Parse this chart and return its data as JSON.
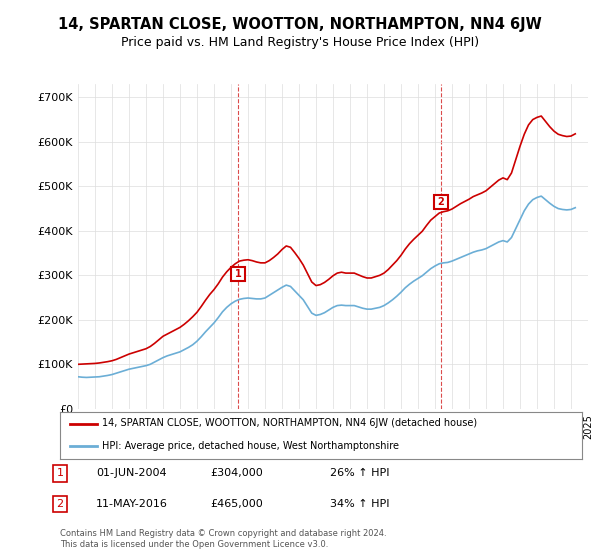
{
  "title": "14, SPARTAN CLOSE, WOOTTON, NORTHAMPTON, NN4 6JW",
  "subtitle": "Price paid vs. HM Land Registry's House Price Index (HPI)",
  "ylabel": "",
  "ylim": [
    0,
    730000
  ],
  "yticks": [
    0,
    100000,
    200000,
    300000,
    400000,
    500000,
    600000,
    700000
  ],
  "ytick_labels": [
    "£0",
    "£100K",
    "£200K",
    "£300K",
    "£400K",
    "£500K",
    "£600K",
    "£700K"
  ],
  "hpi_color": "#6baed6",
  "price_color": "#cc0000",
  "marker1_date": 2004.42,
  "marker1_price": 304000,
  "marker1_label": "1",
  "marker2_date": 2016.36,
  "marker2_price": 465000,
  "marker2_label": "2",
  "legend_line1": "14, SPARTAN CLOSE, WOOTTON, NORTHAMPTON, NN4 6JW (detached house)",
  "legend_line2": "HPI: Average price, detached house, West Northamptonshire",
  "sale1_date": "01-JUN-2004",
  "sale1_price": "£304,000",
  "sale1_hpi": "26% ↑ HPI",
  "sale2_date": "11-MAY-2016",
  "sale2_price": "£465,000",
  "sale2_hpi": "34% ↑ HPI",
  "footer": "Contains HM Land Registry data © Crown copyright and database right 2024.\nThis data is licensed under the Open Government Licence v3.0.",
  "background_color": "#ffffff",
  "grid_color": "#dddddd",
  "title_fontsize": 10.5,
  "subtitle_fontsize": 9,
  "hpi_data": {
    "years": [
      1995.0,
      1995.25,
      1995.5,
      1995.75,
      1996.0,
      1996.25,
      1996.5,
      1996.75,
      1997.0,
      1997.25,
      1997.5,
      1997.75,
      1998.0,
      1998.25,
      1998.5,
      1998.75,
      1999.0,
      1999.25,
      1999.5,
      1999.75,
      2000.0,
      2000.25,
      2000.5,
      2000.75,
      2001.0,
      2001.25,
      2001.5,
      2001.75,
      2002.0,
      2002.25,
      2002.5,
      2002.75,
      2003.0,
      2003.25,
      2003.5,
      2003.75,
      2004.0,
      2004.25,
      2004.5,
      2004.75,
      2005.0,
      2005.25,
      2005.5,
      2005.75,
      2006.0,
      2006.25,
      2006.5,
      2006.75,
      2007.0,
      2007.25,
      2007.5,
      2007.75,
      2008.0,
      2008.25,
      2008.5,
      2008.75,
      2009.0,
      2009.25,
      2009.5,
      2009.75,
      2010.0,
      2010.25,
      2010.5,
      2010.75,
      2011.0,
      2011.25,
      2011.5,
      2011.75,
      2012.0,
      2012.25,
      2012.5,
      2012.75,
      2013.0,
      2013.25,
      2013.5,
      2013.75,
      2014.0,
      2014.25,
      2014.5,
      2014.75,
      2015.0,
      2015.25,
      2015.5,
      2015.75,
      2016.0,
      2016.25,
      2016.5,
      2016.75,
      2017.0,
      2017.25,
      2017.5,
      2017.75,
      2018.0,
      2018.25,
      2018.5,
      2018.75,
      2019.0,
      2019.25,
      2019.5,
      2019.75,
      2020.0,
      2020.25,
      2020.5,
      2020.75,
      2021.0,
      2021.25,
      2021.5,
      2021.75,
      2022.0,
      2022.25,
      2022.5,
      2022.75,
      2023.0,
      2023.25,
      2023.5,
      2023.75,
      2024.0,
      2024.25
    ],
    "values": [
      72000,
      71000,
      70500,
      71000,
      71500,
      72000,
      73500,
      75000,
      77000,
      80000,
      83000,
      86000,
      89000,
      91000,
      93000,
      95000,
      97000,
      100000,
      105000,
      110000,
      115000,
      119000,
      122000,
      125000,
      128000,
      133000,
      138000,
      144000,
      152000,
      162000,
      173000,
      183000,
      193000,
      205000,
      218000,
      228000,
      236000,
      242000,
      246000,
      248000,
      249000,
      248000,
      247000,
      247000,
      249000,
      255000,
      261000,
      267000,
      273000,
      278000,
      275000,
      265000,
      255000,
      245000,
      230000,
      215000,
      210000,
      212000,
      216000,
      222000,
      228000,
      232000,
      233000,
      232000,
      232000,
      232000,
      229000,
      226000,
      224000,
      224000,
      226000,
      228000,
      232000,
      238000,
      245000,
      253000,
      262000,
      272000,
      280000,
      287000,
      293000,
      299000,
      307000,
      315000,
      321000,
      326000,
      328000,
      329000,
      332000,
      336000,
      340000,
      344000,
      348000,
      352000,
      355000,
      357000,
      360000,
      365000,
      370000,
      375000,
      378000,
      375000,
      385000,
      405000,
      425000,
      445000,
      460000,
      470000,
      475000,
      478000,
      470000,
      462000,
      455000,
      450000,
      448000,
      447000,
      448000,
      452000
    ]
  },
  "price_data": {
    "years": [
      1995.0,
      1995.25,
      1995.5,
      1995.75,
      1996.0,
      1996.25,
      1996.5,
      1996.75,
      1997.0,
      1997.25,
      1997.5,
      1997.75,
      1998.0,
      1998.25,
      1998.5,
      1998.75,
      1999.0,
      1999.25,
      1999.5,
      1999.75,
      2000.0,
      2000.25,
      2000.5,
      2000.75,
      2001.0,
      2001.25,
      2001.5,
      2001.75,
      2002.0,
      2002.25,
      2002.5,
      2002.75,
      2003.0,
      2003.25,
      2003.5,
      2003.75,
      2004.0,
      2004.25,
      2004.5,
      2004.75,
      2005.0,
      2005.25,
      2005.5,
      2005.75,
      2006.0,
      2006.25,
      2006.5,
      2006.75,
      2007.0,
      2007.25,
      2007.5,
      2007.75,
      2008.0,
      2008.25,
      2008.5,
      2008.75,
      2009.0,
      2009.25,
      2009.5,
      2009.75,
      2010.0,
      2010.25,
      2010.5,
      2010.75,
      2011.0,
      2011.25,
      2011.5,
      2011.75,
      2012.0,
      2012.25,
      2012.5,
      2012.75,
      2013.0,
      2013.25,
      2013.5,
      2013.75,
      2014.0,
      2014.25,
      2014.5,
      2014.75,
      2015.0,
      2015.25,
      2015.5,
      2015.75,
      2016.0,
      2016.25,
      2016.5,
      2016.75,
      2017.0,
      2017.25,
      2017.5,
      2017.75,
      2018.0,
      2018.25,
      2018.5,
      2018.75,
      2019.0,
      2019.25,
      2019.5,
      2019.75,
      2020.0,
      2020.25,
      2020.5,
      2020.75,
      2021.0,
      2021.25,
      2021.5,
      2021.75,
      2022.0,
      2022.25,
      2022.5,
      2022.75,
      2023.0,
      2023.25,
      2023.5,
      2023.75,
      2024.0,
      2024.25
    ],
    "values": [
      100000,
      100500,
      101000,
      101500,
      102000,
      103000,
      104500,
      106000,
      108000,
      111000,
      115000,
      119000,
      123000,
      126000,
      129000,
      132000,
      135000,
      140000,
      147000,
      155000,
      163000,
      168000,
      173000,
      178000,
      183000,
      190000,
      198000,
      207000,
      217000,
      230000,
      244000,
      257000,
      268000,
      281000,
      296000,
      308000,
      318000,
      326000,
      332000,
      334000,
      335000,
      333000,
      330000,
      328000,
      328000,
      333000,
      340000,
      348000,
      358000,
      366000,
      363000,
      351000,
      338000,
      323000,
      304000,
      285000,
      277000,
      279000,
      284000,
      291000,
      299000,
      305000,
      307000,
      305000,
      305000,
      305000,
      301000,
      297000,
      294000,
      294000,
      297000,
      300000,
      305000,
      313000,
      323000,
      333000,
      345000,
      359000,
      371000,
      381000,
      390000,
      399000,
      412000,
      424000,
      432000,
      440000,
      443000,
      445000,
      449000,
      455000,
      461000,
      466000,
      471000,
      477000,
      481000,
      485000,
      490000,
      498000,
      506000,
      514000,
      519000,
      515000,
      530000,
      560000,
      590000,
      617000,
      638000,
      650000,
      655000,
      658000,
      646000,
      634000,
      624000,
      617000,
      614000,
      612000,
      613000,
      618000
    ]
  }
}
